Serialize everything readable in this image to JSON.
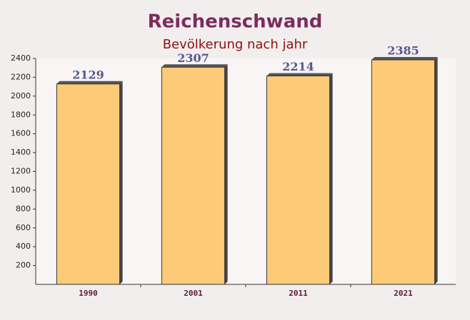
{
  "chart_data": {
    "type": "bar",
    "title": "Reichenschwand",
    "subtitle": "Bevölkerung nach jahr",
    "categories": [
      "1990",
      "2001",
      "2011",
      "2021"
    ],
    "values": [
      2129,
      2307,
      2214,
      2385
    ],
    "color": "#fdc56a",
    "ylim": [
      0,
      2400
    ],
    "yticks": [
      200,
      400,
      600,
      800,
      1000,
      1200,
      1400,
      1600,
      1800,
      2000,
      2200,
      2400
    ]
  }
}
